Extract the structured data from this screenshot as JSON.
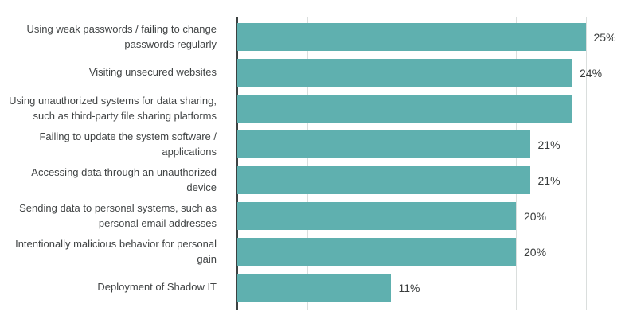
{
  "chart_data": {
    "type": "bar",
    "orientation": "horizontal",
    "title": "",
    "xlabel": "",
    "ylabel": "",
    "xlim": [
      0,
      25
    ],
    "x_ticks_pct": [
      0,
      5,
      10,
      15,
      20,
      25
    ],
    "grid": "vertical-only",
    "legend": "none",
    "bar_color": "#5fb0af",
    "axis_color": "#3c4242",
    "gridline_color": "#dadedd",
    "text_color": "#414445",
    "categories": [
      "Using weak passwords / failing to change\npasswords regularly",
      "Visiting unsecured websites",
      "Using unauthorized systems for data sharing,\nsuch as third-party file sharing platforms",
      "Failing to update the system software /\napplications",
      "Accessing data through an unauthorized\ndevice",
      "Sending data to personal systems, such as\npersonal email addresses",
      "Intentionally malicious behavior for personal\ngain",
      "Deployment of Shadow IT"
    ],
    "values": [
      25,
      24,
      24,
      21,
      21,
      20,
      20,
      11
    ],
    "value_labels": [
      "25%",
      "24%",
      "",
      "21%",
      "21%",
      "20%",
      "20%",
      "11%"
    ]
  }
}
